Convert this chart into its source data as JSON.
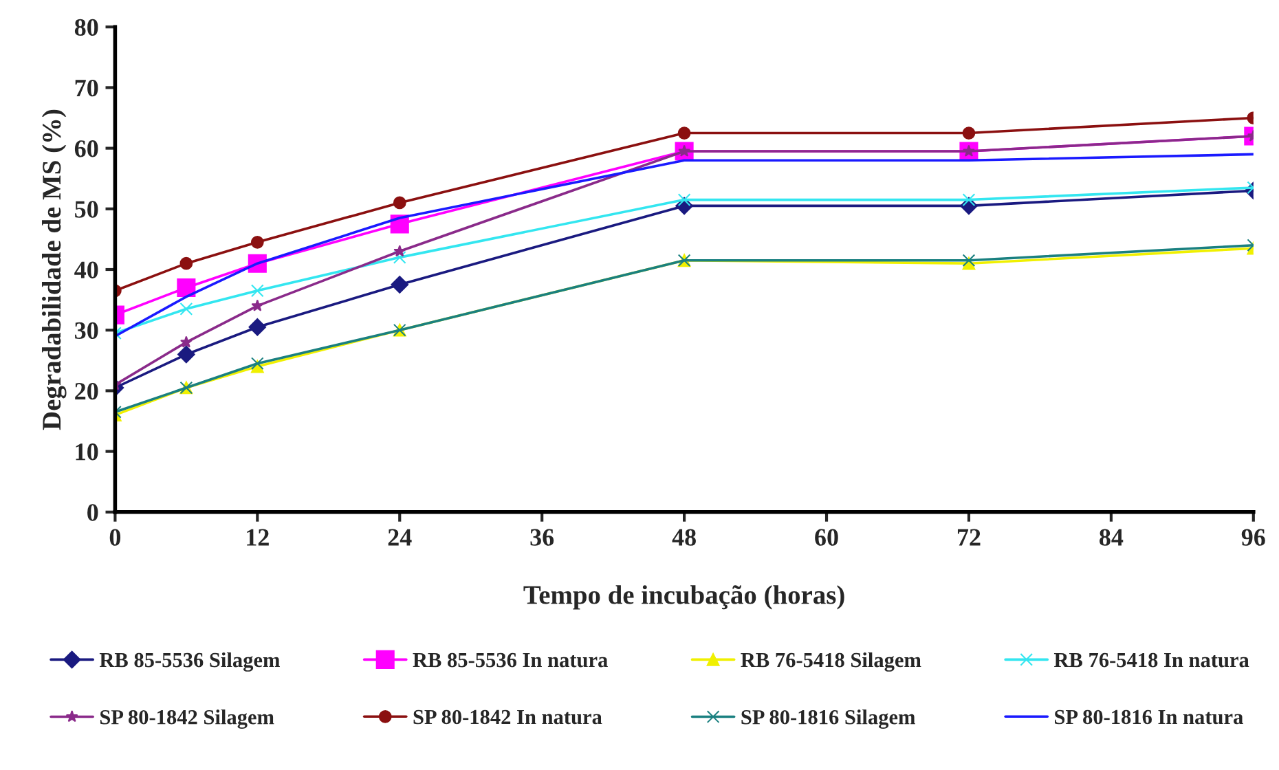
{
  "chart_data": {
    "type": "line",
    "xlabel": "Tempo de incubação (horas)",
    "ylabel": "Degradabilidade de MS (%)",
    "x": [
      0,
      6,
      12,
      24,
      48,
      72,
      96
    ],
    "xlim": [
      0,
      96
    ],
    "xticks": [
      0,
      12,
      24,
      36,
      48,
      60,
      72,
      84,
      96
    ],
    "ylim": [
      0,
      80
    ],
    "yticks": [
      0,
      10,
      20,
      30,
      40,
      50,
      60,
      70,
      80
    ],
    "grid": false,
    "legend": "bottom",
    "line_style": "solid",
    "series": [
      {
        "name": "RB 85-5536 Silagem",
        "color": "#1a1a80",
        "marker": "diamond",
        "values": [
          20.5,
          26,
          30.5,
          37.5,
          50.5,
          50.5,
          53
        ]
      },
      {
        "name": "RB 85-5536 In natura",
        "color": "#ff00ff",
        "marker": "square",
        "values": [
          32.5,
          37,
          41,
          47.5,
          59.5,
          59.5,
          62
        ]
      },
      {
        "name": "RB 76-5418 Silagem",
        "color": "#f0f000",
        "marker": "triangle",
        "values": [
          16,
          20.5,
          24,
          30,
          41.5,
          41,
          43.5
        ]
      },
      {
        "name": "RB 76-5418 In natura",
        "color": "#33e6f0",
        "marker": "cross",
        "values": [
          29.5,
          33.5,
          36.5,
          42,
          51.5,
          51.5,
          53.5
        ]
      },
      {
        "name": "SP 80-1842 Silagem",
        "color": "#8a2a8a",
        "marker": "star",
        "values": [
          21,
          28,
          34,
          43,
          59.5,
          59.5,
          62
        ]
      },
      {
        "name": "SP 80-1842 In natura",
        "color": "#8b1010",
        "marker": "circle",
        "values": [
          36.5,
          41,
          44.5,
          51,
          62.5,
          62.5,
          65
        ]
      },
      {
        "name": "SP 80-1816 Silagem",
        "color": "#1a8080",
        "marker": "cross",
        "values": [
          16.5,
          20.5,
          24.5,
          30,
          41.5,
          41.5,
          44
        ]
      },
      {
        "name": "SP 80-1816 In natura",
        "color": "#1a1aff",
        "marker": "none",
        "values": [
          29,
          35.5,
          41,
          48.5,
          58,
          58,
          59
        ]
      }
    ]
  }
}
